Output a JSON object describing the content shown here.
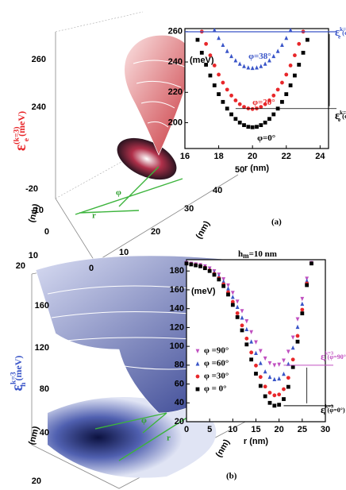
{
  "chart_data": [
    {
      "type": "scatter",
      "panel": "(a)",
      "xlabel": "r (nm)",
      "ylabel": "(meV)",
      "xlim": [
        16,
        24.5
      ],
      "ylim": [
        183,
        262
      ],
      "xticks": [
        16,
        18,
        20,
        22,
        24
      ],
      "yticks": [
        200,
        220,
        240,
        260
      ],
      "series": [
        {
          "name": "φ=0°",
          "color": "#000000",
          "marker": "square",
          "x": [
            16.75,
            17,
            17.25,
            17.5,
            17.75,
            18,
            18.25,
            18.5,
            18.75,
            19,
            19.25,
            19.5,
            19.75,
            20,
            20.25,
            20.5,
            20.75,
            21,
            21.25,
            21.5,
            21.75,
            22,
            22.25,
            22.5,
            22.75,
            23,
            23.25
          ],
          "values": [
            254.6,
            246.1,
            238.2,
            231.1,
            224.6,
            218.8,
            213.7,
            209.3,
            205.5,
            202.5,
            200.1,
            198.4,
            197.3,
            197,
            197.3,
            198.4,
            200.1,
            202.5,
            205.5,
            209.3,
            213.7,
            218.8,
            224.6,
            231.1,
            238.2,
            246.1,
            254.6
          ]
        },
        {
          "name": "φ=20°",
          "color": "#e8272a",
          "marker": "circle",
          "x": [
            17,
            17.25,
            17.5,
            17.75,
            18,
            18.25,
            18.5,
            18.75,
            19,
            19.25,
            19.5,
            19.75,
            20,
            20.25,
            20.5,
            20.75,
            21,
            21.25,
            21.5,
            21.75,
            22,
            22.25,
            22.5,
            22.75,
            23
          ],
          "values": [
            260,
            251.9,
            244.4,
            237.7,
            231.7,
            226.4,
            221.8,
            217.9,
            214.7,
            212.2,
            210.4,
            209.4,
            209,
            209.4,
            210.4,
            212.2,
            214.7,
            217.9,
            221.8,
            226.4,
            231.7,
            237.7,
            244.4,
            251.9,
            260
          ]
        },
        {
          "name": "φ=38°",
          "color": "#3a55c8",
          "marker": "triangle-up",
          "x": [
            17.75,
            18,
            18.25,
            18.5,
            18.75,
            19,
            19.25,
            19.5,
            19.75,
            20,
            20.25,
            20.5,
            20.75,
            21,
            21.25,
            21.5,
            21.75,
            22,
            22.25
          ],
          "values": [
            261.1,
            255.8,
            251.2,
            247.2,
            243.8,
            241,
            238.8,
            237.2,
            236.3,
            236,
            236.3,
            237.2,
            238.8,
            241,
            243.8,
            247.2,
            251.2,
            255.8,
            261.1
          ]
        }
      ],
      "annotations": [
        {
          "symbol": "ε",
          "sub": "e",
          "sup": "k=3",
          "arg": "(φ=38°)",
          "color": "#3a55c8"
        },
        {
          "symbol": "ε",
          "sub": "e",
          "sup": "k=3",
          "arg": "(φ=0°)",
          "color": "#000000"
        }
      ]
    },
    {
      "type": "scatter",
      "panel": "(b)",
      "xlabel": "r (nm)",
      "ylabel": "(meV)",
      "xlim": [
        0,
        30
      ],
      "ylim": [
        20,
        192
      ],
      "xticks": [
        0,
        5,
        10,
        15,
        20,
        25,
        30
      ],
      "yticks": [
        20,
        40,
        60,
        80,
        100,
        120,
        140,
        160,
        180
      ],
      "legend": "lower left",
      "series": [
        {
          "name": "φ =90°",
          "color": "#c050c0",
          "marker": "triangle-down",
          "x": [
            0,
            1,
            2,
            3,
            4,
            5,
            6,
            7,
            8,
            9,
            10,
            11,
            12,
            13,
            14,
            15,
            16,
            17,
            18,
            19,
            20,
            21,
            22,
            23,
            24,
            25,
            26,
            27
          ],
          "values": [
            188.6,
            187.9,
            187.1,
            186.4,
            185,
            182.8,
            179.9,
            176.3,
            171.3,
            164.8,
            156.9,
            147.6,
            137.5,
            126.7,
            115.2,
            104.4,
            95.1,
            87.2,
            82.2,
            80,
            80.7,
            85,
            94.4,
            109.5,
            128.9,
            150.5,
            172,
            188.6
          ]
        },
        {
          "name": "φ =60°",
          "color": "#3a55c8",
          "marker": "triangle-up",
          "x": [
            0,
            1,
            2,
            3,
            4,
            5,
            6,
            7,
            8,
            9,
            10,
            11,
            12,
            13,
            14,
            15,
            16,
            17,
            18,
            19,
            20,
            21,
            22,
            23,
            24,
            25,
            26,
            27
          ],
          "values": [
            188.4,
            187.6,
            186.7,
            185.9,
            184.3,
            181.8,
            178.6,
            174.5,
            168.8,
            161.4,
            152.4,
            141.8,
            130.4,
            118.1,
            105,
            92.8,
            82.2,
            73.2,
            67.5,
            65,
            65.8,
            70.7,
            81.3,
            98.5,
            120.6,
            145.1,
            169.6,
            188.4
          ]
        },
        {
          "name": "φ =30°",
          "color": "#e8272a",
          "marker": "circle",
          "x": [
            0,
            1,
            2,
            3,
            4,
            5,
            6,
            7,
            8,
            9,
            10,
            11,
            12,
            13,
            14,
            15,
            16,
            17,
            18,
            19,
            20,
            21,
            22,
            23,
            24,
            25,
            26,
            27
          ],
          "values": [
            188.1,
            187.2,
            186.3,
            185.3,
            183.5,
            180.7,
            177,
            172.4,
            165.9,
            157.5,
            147.3,
            135.2,
            122.2,
            108.3,
            93.5,
            79.6,
            67.5,
            57.3,
            50.8,
            48,
            48.9,
            54.5,
            66.6,
            86,
            111.1,
            138.9,
            166.8,
            188.1
          ]
        },
        {
          "name": "φ = 0°",
          "color": "#000000",
          "marker": "square",
          "x": [
            0,
            1,
            2,
            3,
            4,
            5,
            6,
            7,
            8,
            9,
            10,
            11,
            12,
            13,
            14,
            15,
            16,
            17,
            18,
            19,
            20,
            21,
            22,
            23,
            24,
            25,
            26,
            27
          ],
          "values": [
            188,
            187,
            186,
            185,
            183,
            180,
            176,
            171,
            164,
            155,
            144,
            131,
            117,
            102,
            86,
            71,
            58,
            47,
            40,
            37,
            38,
            44,
            57,
            78,
            105,
            135,
            165,
            188
          ]
        }
      ],
      "annotations": [
        {
          "symbol": "ε",
          "sub": "e",
          "sup": "k=3",
          "arg": "(φ=90°)",
          "color": "#c050c0"
        },
        {
          "symbol": "ε",
          "sub": "e",
          "sup": "k=3",
          "arg": "(φ=0°)",
          "color": "#000000"
        }
      ]
    }
  ],
  "surface_panels": [
    {
      "zlabel": {
        "symbol": "ε",
        "sub": "e",
        "sup": "(k=3)",
        "unit": "(meV)"
      },
      "zticks": [
        "260",
        "240"
      ],
      "yticks": [
        "-20",
        "-10",
        "0",
        "10",
        "20"
      ],
      "ylabel": "(nm)",
      "xticks": [
        "0",
        "10",
        "20",
        "30",
        "40",
        "50"
      ],
      "xlabel": "(nm)",
      "angle": "φ",
      "radius": "r"
    },
    {
      "zlabel": {
        "symbol": "ε",
        "sub": "h",
        "sup": "k=3",
        "unit": "(meV)"
      },
      "zticks": [
        "160",
        "120",
        "80",
        "40"
      ],
      "yticks": [
        "20"
      ],
      "ylabel": "(nm)",
      "xlabel": "(nm)",
      "angle": "φ",
      "radius": "r"
    }
  ],
  "thickness": {
    "symbol": "h",
    "sub": "m",
    "rest": "=10 nm"
  }
}
